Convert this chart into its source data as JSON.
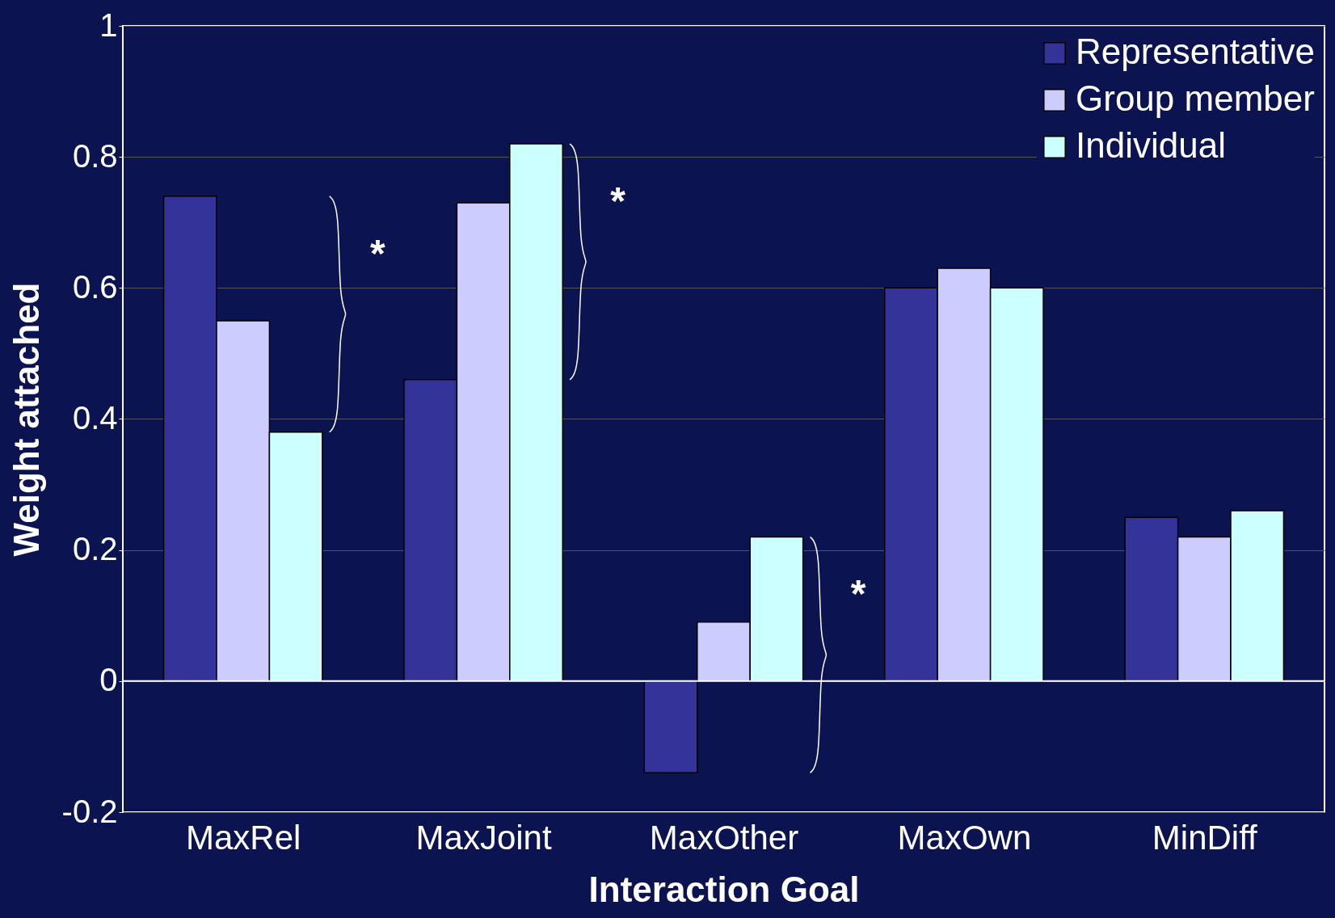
{
  "chart_data": {
    "type": "bar",
    "xlabel": "Interaction Goal",
    "ylabel": "Weight attached",
    "categories": [
      "MaxRel",
      "MaxJoint",
      "MaxOther",
      "MaxOwn",
      "MinDiff"
    ],
    "series": [
      {
        "name": "Representative",
        "color": "#333399",
        "values": [
          0.74,
          0.46,
          -0.14,
          0.6,
          0.25
        ]
      },
      {
        "name": "Group member",
        "color": "#ccccff",
        "values": [
          0.55,
          0.73,
          0.09,
          0.63,
          0.22
        ]
      },
      {
        "name": "Individual",
        "color": "#ccffff",
        "values": [
          0.38,
          0.82,
          0.22,
          0.6,
          0.26
        ]
      }
    ],
    "ylim": [
      -0.2,
      1
    ],
    "yticks": [
      -0.2,
      0,
      0.2,
      0.4,
      0.6,
      0.8,
      1
    ],
    "grid": "y",
    "legend": "top right",
    "ref_lines": [
      {
        "axis": "y",
        "value": 0,
        "color": "#ffffff"
      }
    ],
    "annotations": [
      "*",
      "*",
      "*"
    ]
  }
}
